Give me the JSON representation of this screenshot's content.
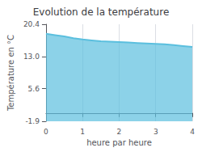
{
  "chart_data": {
    "type": "area",
    "title": "Evolution de la température",
    "xlabel": "heure par heure",
    "ylabel": "Température en °C",
    "x": [
      0,
      0.25,
      0.5,
      0.75,
      1.0,
      1.25,
      1.5,
      1.75,
      2.0,
      2.25,
      2.5,
      2.75,
      3.0,
      3.25,
      3.5,
      3.75,
      4.0
    ],
    "values": [
      18.2,
      17.9,
      17.6,
      17.2,
      16.9,
      16.7,
      16.5,
      16.4,
      16.3,
      16.2,
      16.1,
      16.0,
      15.9,
      15.8,
      15.6,
      15.4,
      15.2
    ],
    "color": "#5bbfde",
    "xlim": [
      0,
      4
    ],
    "xticks": [
      0,
      1,
      2,
      3,
      4
    ],
    "ylim": [
      -1.9,
      20.4
    ],
    "yticks": [
      -1.9,
      5.6,
      {
        "value": 13.0,
        "label": "13.0"
      },
      20.4
    ],
    "grid": "x"
  }
}
